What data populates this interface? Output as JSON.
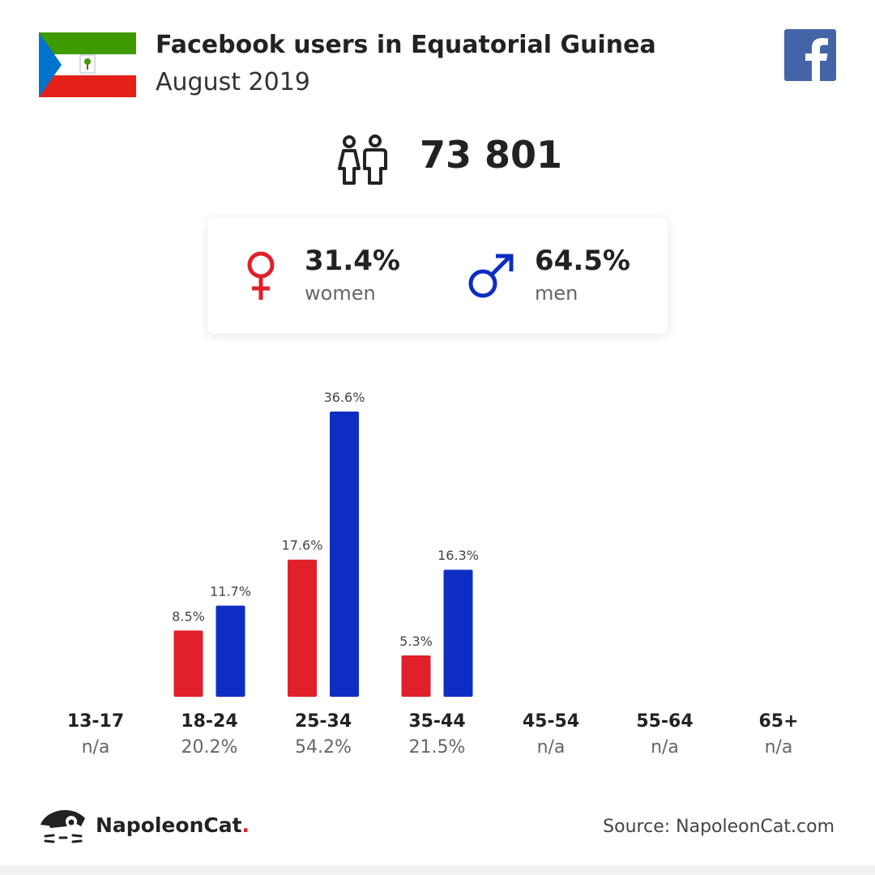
{
  "header": {
    "title": "Facebook users in Equatorial Guinea",
    "subtitle": "August 2019"
  },
  "colors": {
    "women": "#e0202a",
    "men": "#0e2dc2",
    "facebook": "#4464a8",
    "flag_green": "#3e9a00",
    "flag_white": "#ffffff",
    "flag_red": "#e32118",
    "flag_blue": "#0073ce"
  },
  "total": {
    "value": "73 801",
    "icon": "people-icon"
  },
  "gender": {
    "women": {
      "percent": "31.4%",
      "label": "women",
      "icon": "female-symbol-icon"
    },
    "men": {
      "percent": "64.5%",
      "label": "men",
      "icon": "male-symbol-icon"
    }
  },
  "chart_data": {
    "type": "bar",
    "categories": [
      "13-17",
      "18-24",
      "25-34",
      "35-44",
      "45-54",
      "55-64",
      "65+"
    ],
    "category_shares": [
      "n/a",
      "20.2%",
      "54.2%",
      "21.5%",
      "n/a",
      "n/a",
      "n/a"
    ],
    "series": [
      {
        "name": "women",
        "values": [
          null,
          8.5,
          17.6,
          5.3,
          null,
          null,
          null
        ],
        "labels": [
          "",
          "8.5%",
          "17.6%",
          "5.3%",
          "",
          "",
          ""
        ]
      },
      {
        "name": "men",
        "values": [
          null,
          11.7,
          36.6,
          16.3,
          null,
          null,
          null
        ],
        "labels": [
          "",
          "11.7%",
          "36.6%",
          "16.3%",
          "",
          "",
          ""
        ]
      }
    ],
    "ylim": [
      0,
      36.6
    ],
    "grid": false,
    "legend": "none"
  },
  "footer": {
    "brand": "NapoleonCat",
    "brand_dot": ".",
    "source": "Source: NapoleonCat.com",
    "logo_icon": "napoleoncat-logo-icon"
  }
}
